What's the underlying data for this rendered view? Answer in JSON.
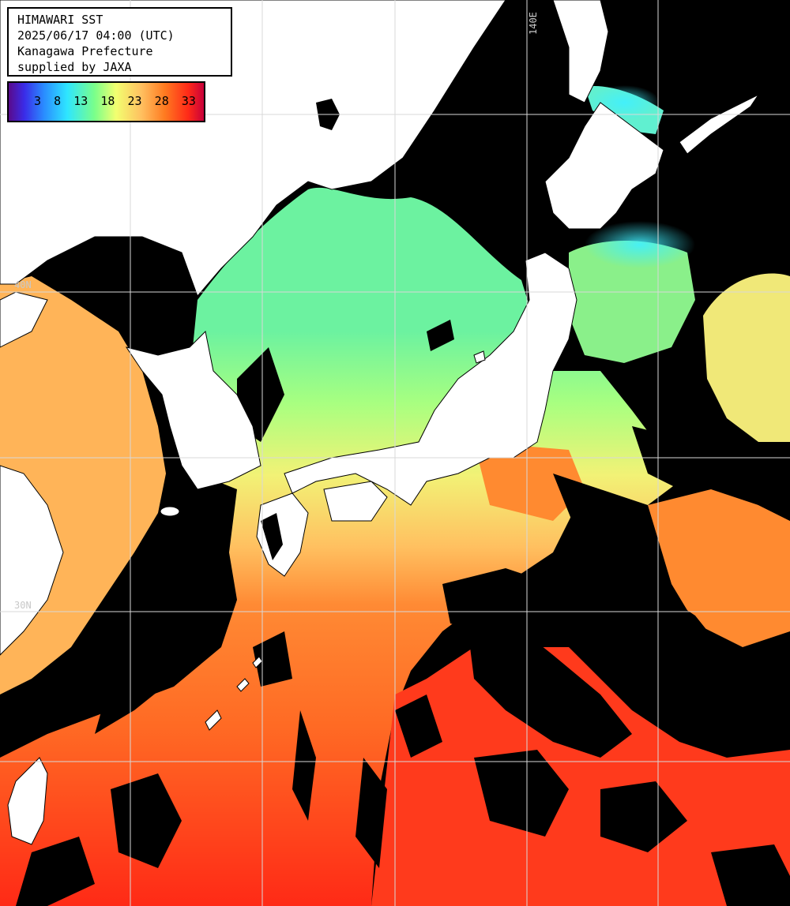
{
  "info": {
    "line1": "HIMAWARI SST",
    "line2": "2025/06/17 04:00 (UTC)",
    "line3": "Kanagawa Prefecture",
    "line4": "supplied by JAXA"
  },
  "legend": {
    "labels": [
      "3",
      "8",
      "13",
      "18",
      "23",
      "28",
      "33"
    ]
  },
  "grid_labels": {
    "lon_140": "140E",
    "lat_upper": "40N",
    "lat_lower": "30N"
  },
  "colors": {
    "land": "#ffffff",
    "cloud_missing": "#000000",
    "cold": "#3cf0ff",
    "cool": "#8cff8c",
    "mild": "#f0ff78",
    "warm": "#ffb048",
    "hot": "#ff6020",
    "very_hot": "#ff3018",
    "grid": "#d8d8d8"
  }
}
